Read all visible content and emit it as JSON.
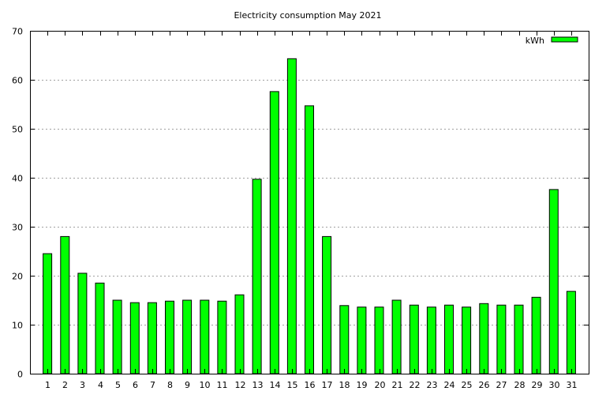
{
  "chart_data": {
    "type": "bar",
    "title": "Electricity consumption May 2021",
    "xlabel": "",
    "ylabel": "",
    "ylim": [
      0,
      70
    ],
    "yticks": [
      0,
      10,
      20,
      30,
      40,
      50,
      60,
      70
    ],
    "grid": true,
    "legend_position": "top-right",
    "categories": [
      "1",
      "2",
      "3",
      "4",
      "5",
      "6",
      "7",
      "8",
      "9",
      "10",
      "11",
      "12",
      "13",
      "14",
      "15",
      "16",
      "17",
      "18",
      "19",
      "20",
      "21",
      "22",
      "23",
      "24",
      "25",
      "26",
      "27",
      "28",
      "29",
      "30",
      "31"
    ],
    "series": [
      {
        "name": "kWh",
        "color": "#00ff00",
        "values": [
          24.5,
          28.0,
          20.5,
          18.5,
          15.0,
          14.5,
          14.5,
          14.8,
          15.0,
          15.0,
          14.8,
          16.1,
          39.7,
          57.6,
          64.3,
          54.7,
          28.0,
          13.9,
          13.6,
          13.6,
          15.0,
          14.0,
          13.6,
          14.0,
          13.6,
          14.3,
          14.0,
          14.0,
          15.6,
          37.6,
          16.8
        ]
      }
    ]
  }
}
